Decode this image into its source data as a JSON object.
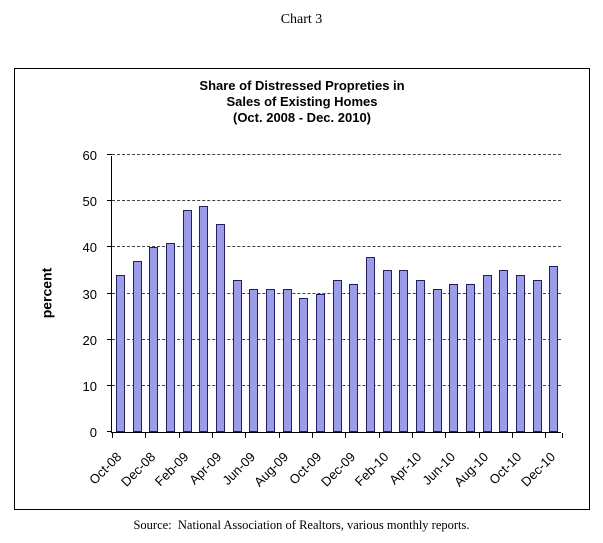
{
  "page": {
    "title": "Chart 3",
    "source": "Source:  National Association of Realtors, various monthly reports."
  },
  "chart_data": {
    "type": "bar",
    "title_lines": [
      "Share of Distressed Propreties in",
      "Sales of Existing Homes",
      "(Oct. 2008 - Dec. 2010)"
    ],
    "ylabel": "percent",
    "xlabel": "",
    "ylim": [
      0,
      60
    ],
    "yticks": [
      0,
      10,
      20,
      30,
      40,
      50,
      60
    ],
    "grid": "horizontal-dashed",
    "legend": "none",
    "categories": [
      "Oct-08",
      "Nov-08",
      "Dec-08",
      "Jan-09",
      "Feb-09",
      "Mar-09",
      "Apr-09",
      "May-09",
      "Jun-09",
      "Jul-09",
      "Aug-09",
      "Sep-09",
      "Oct-09",
      "Nov-09",
      "Dec-09",
      "Jan-10",
      "Feb-10",
      "Mar-10",
      "Apr-10",
      "May-10",
      "Jun-10",
      "Jul-10",
      "Aug-10",
      "Sep-10",
      "Oct-10",
      "Nov-10",
      "Dec-10"
    ],
    "x_tick_labels_shown": [
      "Oct-08",
      "Dec-08",
      "Feb-09",
      "Apr-09",
      "Jun-09",
      "Aug-09",
      "Oct-09",
      "Dec-09",
      "Feb-10",
      "Apr-10",
      "Jun-10",
      "Aug-10",
      "Oct-10",
      "Dec-10"
    ],
    "values": [
      34,
      37,
      40,
      41,
      48,
      49,
      45,
      33,
      31,
      31,
      31,
      29,
      30,
      33,
      32,
      38,
      35,
      35,
      33,
      31,
      32,
      32,
      34,
      35,
      34,
      33,
      36
    ],
    "colors": {
      "bar_fill": "#9c9ce8",
      "bar_border": "#202060",
      "gridline": "#404040",
      "axis": "#000000"
    }
  }
}
